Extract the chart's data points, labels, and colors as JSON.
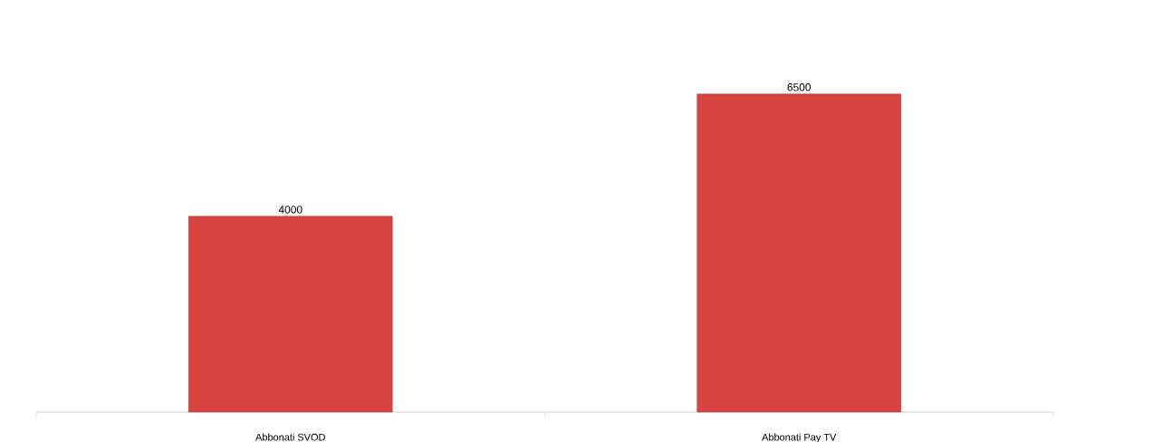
{
  "chart_data": {
    "type": "bar",
    "categories": [
      "Abbonati SVOD",
      "Abbonati Pay TV"
    ],
    "values": [
      4000,
      6500
    ],
    "color": "#d64541",
    "data_labels": true
  }
}
